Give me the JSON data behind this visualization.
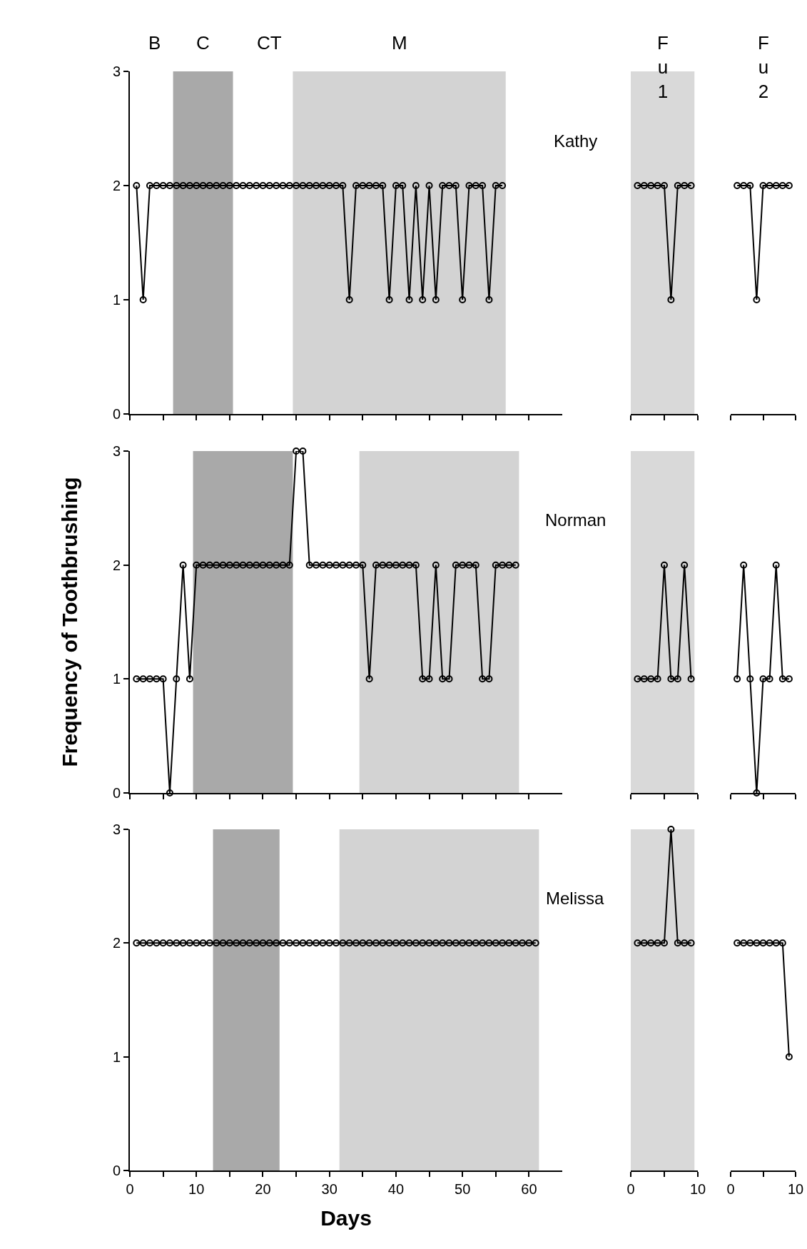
{
  "chart_data": [
    {
      "type": "line",
      "annotations": [
        "Kathy",
        "B",
        "CT"
      ],
      "x": [
        1,
        2,
        3,
        4,
        5,
        6,
        7,
        8,
        9,
        10,
        11,
        12,
        13,
        14,
        15,
        16,
        17,
        18,
        19,
        20,
        21,
        22,
        23,
        24,
        25,
        26,
        27,
        28,
        29,
        30,
        31,
        32,
        33,
        34,
        35,
        36,
        37,
        38,
        39,
        40,
        41,
        42,
        43,
        44,
        45,
        46,
        47,
        48,
        49,
        50,
        51,
        52,
        53,
        54,
        55,
        56
      ],
      "series": [
        {
          "color": "#000000",
          "values": [
            2,
            1,
            2,
            2,
            2,
            2,
            2,
            2,
            2,
            2,
            2,
            2,
            2,
            2,
            2,
            2,
            2,
            2,
            2,
            2,
            2,
            2,
            2,
            2,
            2,
            2,
            2,
            2,
            2,
            2,
            2,
            2,
            1,
            2,
            2,
            2,
            2,
            2,
            1,
            2,
            2,
            1,
            2,
            1,
            2,
            1,
            2,
            2,
            2,
            1,
            2,
            2,
            2,
            1,
            2,
            2
          ]
        }
      ],
      "xlim": [
        0,
        65
      ],
      "xticks": [
        0,
        {
          "value": 5,
          "label": null
        },
        10,
        {
          "value": 15,
          "label": null
        },
        20,
        {
          "value": 25,
          "label": null
        },
        30,
        {
          "value": 35,
          "label": null
        },
        40,
        {
          "value": 45,
          "label": null
        },
        50,
        {
          "value": 55,
          "label": null
        },
        60
      ],
      "ylim": [
        0,
        3
      ],
      "yticks": [
        0,
        1,
        2,
        3
      ],
      "tick_labels": "y",
      "bands": [
        {
          "axis": "x",
          "from": 6.5,
          "to": 15.5,
          "label": "C",
          "color": "#a9a9a9"
        },
        {
          "axis": "x",
          "from": 24.5,
          "to": 56.5,
          "label": "M",
          "color": "#d3d3d3"
        }
      ],
      "marker": "circle",
      "line_style": "solid"
    },
    {
      "type": "line",
      "x": [
        1,
        2,
        3,
        4,
        5,
        6,
        7,
        8,
        9
      ],
      "series": [
        {
          "color": "#000000",
          "values": [
            2,
            2,
            2,
            2,
            2,
            1,
            2,
            2,
            2
          ]
        }
      ],
      "xlim": [
        0,
        10
      ],
      "xticks": [
        0,
        {
          "value": 5,
          "label": null
        },
        10
      ],
      "ylim": [
        0,
        3
      ],
      "yticks": [
        0,
        1,
        2,
        3
      ],
      "tick_labels": false,
      "bands": [
        {
          "axis": "x",
          "from": 0,
          "to": 9.5,
          "label": "Fu1",
          "color": "#d9d9d9"
        }
      ],
      "marker": "circle",
      "line_style": "solid"
    },
    {
      "type": "line",
      "annotations": [
        "Fu2"
      ],
      "x": [
        1,
        2,
        3,
        4,
        5,
        6,
        7,
        8,
        9
      ],
      "series": [
        {
          "color": "#000000",
          "values": [
            2,
            2,
            2,
            1,
            2,
            2,
            2,
            2,
            2
          ]
        }
      ],
      "xlim": [
        0,
        10
      ],
      "xticks": [
        0,
        {
          "value": 5,
          "label": null
        },
        10
      ],
      "ylim": [
        0,
        3
      ],
      "yticks": [
        0,
        1,
        2,
        3
      ],
      "tick_labels": false,
      "marker": "circle",
      "line_style": "solid"
    },
    {
      "type": "line",
      "ylabel": "Frequency of Toothbrushing",
      "annotations": [
        "Norman"
      ],
      "x": [
        1,
        2,
        3,
        4,
        5,
        6,
        7,
        8,
        9,
        10,
        11,
        12,
        13,
        14,
        15,
        16,
        17,
        18,
        19,
        20,
        21,
        22,
        23,
        24,
        25,
        26,
        27,
        28,
        29,
        30,
        31,
        32,
        33,
        34,
        35,
        36,
        37,
        38,
        39,
        40,
        41,
        42,
        43,
        44,
        45,
        46,
        47,
        48,
        49,
        50,
        51,
        52,
        53,
        54,
        55,
        56,
        57,
        58
      ],
      "series": [
        {
          "color": "#000000",
          "values": [
            1,
            1,
            1,
            1,
            1,
            0,
            1,
            2,
            1,
            2,
            2,
            2,
            2,
            2,
            2,
            2,
            2,
            2,
            2,
            2,
            2,
            2,
            2,
            2,
            3,
            3,
            2,
            2,
            2,
            2,
            2,
            2,
            2,
            2,
            2,
            1,
            2,
            2,
            2,
            2,
            2,
            2,
            2,
            1,
            1,
            2,
            1,
            1,
            2,
            2,
            2,
            2,
            1,
            1,
            2,
            2,
            2,
            2
          ]
        }
      ],
      "xlim": [
        0,
        65
      ],
      "xticks": [
        0,
        {
          "value": 5,
          "label": null
        },
        10,
        {
          "value": 15,
          "label": null
        },
        20,
        {
          "value": 25,
          "label": null
        },
        30,
        {
          "value": 35,
          "label": null
        },
        40,
        {
          "value": 45,
          "label": null
        },
        50,
        {
          "value": 55,
          "label": null
        },
        60
      ],
      "ylim": [
        0,
        3
      ],
      "yticks": [
        0,
        1,
        2,
        3
      ],
      "tick_labels": "y",
      "bands": [
        {
          "axis": "x",
          "from": 9.5,
          "to": 24.5,
          "color": "#a9a9a9"
        },
        {
          "axis": "x",
          "from": 34.5,
          "to": 58.5,
          "color": "#d3d3d3"
        }
      ],
      "marker": "circle",
      "line_style": "solid"
    },
    {
      "type": "line",
      "x": [
        1,
        2,
        3,
        4,
        5,
        6,
        7,
        8,
        9
      ],
      "series": [
        {
          "color": "#000000",
          "values": [
            1,
            1,
            1,
            1,
            2,
            1,
            1,
            2,
            1
          ]
        }
      ],
      "xlim": [
        0,
        10
      ],
      "xticks": [
        0,
        {
          "value": 5,
          "label": null
        },
        10
      ],
      "ylim": [
        0,
        3
      ],
      "yticks": [
        0,
        1,
        2,
        3
      ],
      "tick_labels": false,
      "bands": [
        {
          "axis": "x",
          "from": 0,
          "to": 9.5,
          "color": "#d9d9d9"
        }
      ],
      "marker": "circle",
      "line_style": "solid"
    },
    {
      "type": "line",
      "x": [
        1,
        2,
        3,
        4,
        5,
        6,
        7,
        8,
        9
      ],
      "series": [
        {
          "color": "#000000",
          "values": [
            1,
            2,
            1,
            0,
            1,
            1,
            2,
            1,
            1
          ]
        }
      ],
      "xlim": [
        0,
        10
      ],
      "xticks": [
        0,
        {
          "value": 5,
          "label": null
        },
        10
      ],
      "ylim": [
        0,
        3
      ],
      "yticks": [
        0,
        1,
        2,
        3
      ],
      "tick_labels": false,
      "marker": "circle",
      "line_style": "solid"
    },
    {
      "type": "line",
      "xlabel": "Days",
      "annotations": [
        "Melissa"
      ],
      "x": [
        1,
        2,
        3,
        4,
        5,
        6,
        7,
        8,
        9,
        10,
        11,
        12,
        13,
        14,
        15,
        16,
        17,
        18,
        19,
        20,
        21,
        22,
        23,
        24,
        25,
        26,
        27,
        28,
        29,
        30,
        31,
        32,
        33,
        34,
        35,
        36,
        37,
        38,
        39,
        40,
        41,
        42,
        43,
        44,
        45,
        46,
        47,
        48,
        49,
        50,
        51,
        52,
        53,
        54,
        55,
        56,
        57,
        58,
        59,
        60,
        61
      ],
      "series": [
        {
          "color": "#000000",
          "values": [
            2,
            2,
            2,
            2,
            2,
            2,
            2,
            2,
            2,
            2,
            2,
            2,
            2,
            2,
            2,
            2,
            2,
            2,
            2,
            2,
            2,
            2,
            2,
            2,
            2,
            2,
            2,
            2,
            2,
            2,
            2,
            2,
            2,
            2,
            2,
            2,
            2,
            2,
            2,
            2,
            2,
            2,
            2,
            2,
            2,
            2,
            2,
            2,
            2,
            2,
            2,
            2,
            2,
            2,
            2,
            2,
            2,
            2,
            2,
            2,
            2
          ]
        }
      ],
      "xlim": [
        0,
        65
      ],
      "xticks": [
        0,
        {
          "value": 5,
          "label": null
        },
        10,
        {
          "value": 15,
          "label": null
        },
        20,
        {
          "value": 25,
          "label": null
        },
        30,
        {
          "value": 35,
          "label": null
        },
        40,
        {
          "value": 45,
          "label": null
        },
        50,
        {
          "value": 55,
          "label": null
        },
        60
      ],
      "ylim": [
        0,
        3
      ],
      "yticks": [
        0,
        1,
        2,
        3
      ],
      "bands": [
        {
          "axis": "x",
          "from": 12.5,
          "to": 22.5,
          "color": "#a9a9a9"
        },
        {
          "axis": "x",
          "from": 31.5,
          "to": 61.5,
          "color": "#d3d3d3"
        }
      ],
      "marker": "circle",
      "line_style": "solid"
    },
    {
      "type": "line",
      "x": [
        1,
        2,
        3,
        4,
        5,
        6,
        7,
        8,
        9
      ],
      "series": [
        {
          "color": "#000000",
          "values": [
            2,
            2,
            2,
            2,
            2,
            3,
            2,
            2,
            2
          ]
        }
      ],
      "xlim": [
        0,
        10
      ],
      "xticks": [
        0,
        {
          "value": 5,
          "label": null
        },
        10
      ],
      "ylim": [
        0,
        3
      ],
      "yticks": [
        0,
        1,
        2,
        3
      ],
      "tick_labels": "x",
      "bands": [
        {
          "axis": "x",
          "from": 0,
          "to": 9.5,
          "color": "#d9d9d9"
        }
      ],
      "marker": "circle",
      "line_style": "solid"
    },
    {
      "type": "line",
      "x": [
        1,
        2,
        3,
        4,
        5,
        6,
        7,
        8,
        9
      ],
      "series": [
        {
          "color": "#000000",
          "values": [
            2,
            2,
            2,
            2,
            2,
            2,
            2,
            2,
            1
          ]
        }
      ],
      "xlim": [
        0,
        10
      ],
      "xticks": [
        0,
        {
          "value": 5,
          "label": null
        },
        10
      ],
      "ylim": [
        0,
        3
      ],
      "yticks": [
        0,
        1,
        2,
        3
      ],
      "tick_labels": "x",
      "marker": "circle",
      "line_style": "solid"
    }
  ]
}
